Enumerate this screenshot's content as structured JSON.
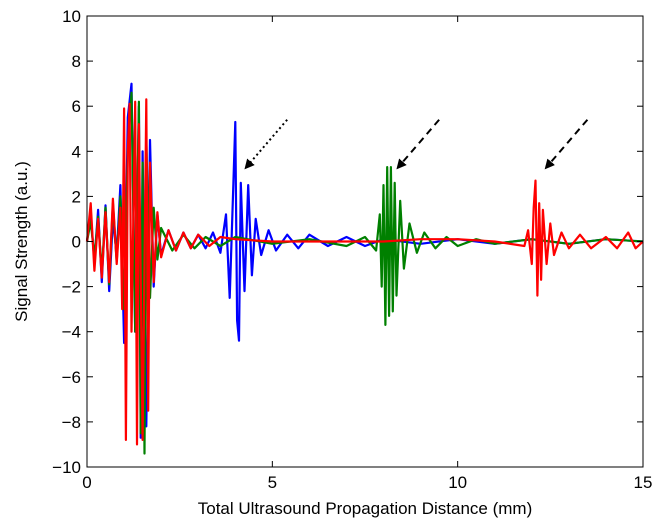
{
  "chart_data": {
    "type": "line",
    "xlabel": "Total Ultrasound Propagation Distance (mm)",
    "ylabel": "Signal Strength (a.u.)",
    "xlim": [
      0,
      15
    ],
    "ylim": [
      -10,
      10
    ],
    "xticks": [
      0,
      5,
      10,
      15
    ],
    "yticks": [
      -10,
      -8,
      -6,
      -4,
      -2,
      0,
      2,
      4,
      6,
      8,
      10
    ],
    "grid": false,
    "legend": "none",
    "series": [
      {
        "color": "#0000ff",
        "points": [
          [
            0.0,
            0.0
          ],
          [
            0.1,
            1.2
          ],
          [
            0.2,
            -0.9
          ],
          [
            0.3,
            1.4
          ],
          [
            0.4,
            -1.8
          ],
          [
            0.5,
            1.6
          ],
          [
            0.6,
            -2.2
          ],
          [
            0.7,
            1.0
          ],
          [
            0.8,
            -0.6
          ],
          [
            0.9,
            2.5
          ],
          [
            1.0,
            -4.5
          ],
          [
            1.1,
            5.5
          ],
          [
            1.2,
            7.0
          ],
          [
            1.3,
            -4.0
          ],
          [
            1.4,
            6.0
          ],
          [
            1.45,
            -8.7
          ],
          [
            1.5,
            4.0
          ],
          [
            1.6,
            -8.2
          ],
          [
            1.7,
            4.5
          ],
          [
            1.8,
            -2.0
          ],
          [
            1.9,
            1.2
          ],
          [
            2.0,
            -0.6
          ],
          [
            2.2,
            0.5
          ],
          [
            2.4,
            -0.4
          ],
          [
            2.6,
            0.4
          ],
          [
            2.8,
            -0.3
          ],
          [
            3.0,
            0.3
          ],
          [
            3.2,
            -0.3
          ],
          [
            3.4,
            0.4
          ],
          [
            3.6,
            -0.5
          ],
          [
            3.75,
            1.2
          ],
          [
            3.85,
            -2.5
          ],
          [
            3.95,
            2.6
          ],
          [
            4.0,
            5.3
          ],
          [
            4.05,
            -3.5
          ],
          [
            4.1,
            -4.4
          ],
          [
            4.15,
            2.6
          ],
          [
            4.25,
            -2.2
          ],
          [
            4.35,
            2.5
          ],
          [
            4.45,
            -1.5
          ],
          [
            4.55,
            1.0
          ],
          [
            4.7,
            -0.6
          ],
          [
            4.9,
            0.5
          ],
          [
            5.1,
            -0.4
          ],
          [
            5.4,
            0.3
          ],
          [
            5.7,
            -0.3
          ],
          [
            6.0,
            0.3
          ],
          [
            6.5,
            -0.2
          ],
          [
            7.0,
            0.2
          ],
          [
            7.5,
            -0.2
          ],
          [
            8.0,
            0.1
          ],
          [
            9.0,
            -0.1
          ],
          [
            10.0,
            0.1
          ],
          [
            11.0,
            -0.1
          ],
          [
            12.0,
            0.1
          ],
          [
            13.0,
            -0.1
          ],
          [
            14.0,
            0.1
          ],
          [
            15.0,
            0.0
          ]
        ]
      },
      {
        "color": "#008000",
        "points": [
          [
            0.0,
            0.0
          ],
          [
            0.1,
            0.9
          ],
          [
            0.2,
            -0.7
          ],
          [
            0.3,
            1.1
          ],
          [
            0.4,
            -1.4
          ],
          [
            0.5,
            1.5
          ],
          [
            0.6,
            -1.9
          ],
          [
            0.7,
            1.7
          ],
          [
            0.8,
            -0.9
          ],
          [
            0.9,
            2.0
          ],
          [
            1.0,
            -3.0
          ],
          [
            1.1,
            4.0
          ],
          [
            1.2,
            6.6
          ],
          [
            1.3,
            -4.0
          ],
          [
            1.4,
            6.2
          ],
          [
            1.45,
            -8.5
          ],
          [
            1.5,
            3.5
          ],
          [
            1.55,
            -9.4
          ],
          [
            1.6,
            4.5
          ],
          [
            1.7,
            -2.5
          ],
          [
            1.8,
            1.5
          ],
          [
            1.9,
            -0.8
          ],
          [
            2.0,
            0.6
          ],
          [
            2.3,
            -0.4
          ],
          [
            2.6,
            0.3
          ],
          [
            2.9,
            -0.3
          ],
          [
            3.2,
            0.2
          ],
          [
            3.6,
            -0.2
          ],
          [
            4.0,
            0.2
          ],
          [
            5.0,
            -0.1
          ],
          [
            6.0,
            0.1
          ],
          [
            7.0,
            -0.2
          ],
          [
            7.5,
            0.2
          ],
          [
            7.8,
            -0.4
          ],
          [
            7.9,
            1.2
          ],
          [
            7.95,
            -2.0
          ],
          [
            8.0,
            2.5
          ],
          [
            8.05,
            -3.7
          ],
          [
            8.1,
            3.3
          ],
          [
            8.15,
            -3.3
          ],
          [
            8.2,
            3.3
          ],
          [
            8.25,
            -3.1
          ],
          [
            8.3,
            2.6
          ],
          [
            8.35,
            -2.4
          ],
          [
            8.45,
            1.8
          ],
          [
            8.55,
            -1.2
          ],
          [
            8.7,
            0.8
          ],
          [
            8.9,
            -0.5
          ],
          [
            9.1,
            0.4
          ],
          [
            9.4,
            -0.3
          ],
          [
            9.7,
            0.2
          ],
          [
            10.0,
            -0.2
          ],
          [
            10.5,
            0.1
          ],
          [
            11.0,
            -0.1
          ],
          [
            12.0,
            0.1
          ],
          [
            13.0,
            -0.1
          ],
          [
            14.0,
            0.1
          ],
          [
            15.0,
            0.0
          ]
        ]
      },
      {
        "color": "#ff0000",
        "points": [
          [
            0.0,
            0.0
          ],
          [
            0.1,
            1.7
          ],
          [
            0.2,
            -1.3
          ],
          [
            0.3,
            1.0
          ],
          [
            0.4,
            -1.6
          ],
          [
            0.5,
            1.3
          ],
          [
            0.6,
            -1.8
          ],
          [
            0.7,
            1.9
          ],
          [
            0.8,
            -1.0
          ],
          [
            0.9,
            1.5
          ],
          [
            0.95,
            -3.0
          ],
          [
            1.0,
            5.9
          ],
          [
            1.05,
            -8.8
          ],
          [
            1.1,
            4.0
          ],
          [
            1.15,
            6.1
          ],
          [
            1.2,
            -4.0
          ],
          [
            1.3,
            6.2
          ],
          [
            1.35,
            -9.0
          ],
          [
            1.4,
            5.2
          ],
          [
            1.5,
            -8.8
          ],
          [
            1.6,
            6.3
          ],
          [
            1.65,
            -7.5
          ],
          [
            1.7,
            3.5
          ],
          [
            1.8,
            -1.8
          ],
          [
            1.9,
            1.3
          ],
          [
            2.0,
            -0.7
          ],
          [
            2.2,
            0.5
          ],
          [
            2.4,
            -0.4
          ],
          [
            2.6,
            0.4
          ],
          [
            2.8,
            -0.3
          ],
          [
            3.0,
            0.3
          ],
          [
            3.3,
            -0.2
          ],
          [
            3.6,
            0.2
          ],
          [
            4.0,
            0.1
          ],
          [
            5.0,
            0.0
          ],
          [
            6.0,
            0.0
          ],
          [
            7.0,
            0.0
          ],
          [
            8.0,
            0.0
          ],
          [
            9.0,
            0.1
          ],
          [
            10.0,
            0.1
          ],
          [
            11.0,
            0.0
          ],
          [
            11.8,
            -0.2
          ],
          [
            11.9,
            0.5
          ],
          [
            12.0,
            -1.0
          ],
          [
            12.05,
            1.5
          ],
          [
            12.1,
            2.7
          ],
          [
            12.15,
            -2.4
          ],
          [
            12.2,
            1.7
          ],
          [
            12.25,
            -1.7
          ],
          [
            12.3,
            1.4
          ],
          [
            12.4,
            -1.0
          ],
          [
            12.5,
            0.8
          ],
          [
            12.6,
            -0.6
          ],
          [
            12.8,
            0.4
          ],
          [
            13.0,
            -0.3
          ],
          [
            13.3,
            0.3
          ],
          [
            13.6,
            -0.3
          ],
          [
            14.0,
            0.2
          ],
          [
            14.3,
            -0.3
          ],
          [
            14.6,
            0.4
          ],
          [
            14.8,
            -0.3
          ],
          [
            15.0,
            0.0
          ]
        ]
      }
    ],
    "annotations": [
      {
        "type": "arrow",
        "style": "dotted",
        "from": [
          5.4,
          5.4
        ],
        "to": [
          4.3,
          3.3
        ]
      },
      {
        "type": "arrow",
        "style": "dashed",
        "from": [
          9.5,
          5.4
        ],
        "to": [
          8.4,
          3.3
        ]
      },
      {
        "type": "arrow",
        "style": "dashed",
        "from": [
          13.5,
          5.4
        ],
        "to": [
          12.4,
          3.3
        ]
      }
    ]
  }
}
